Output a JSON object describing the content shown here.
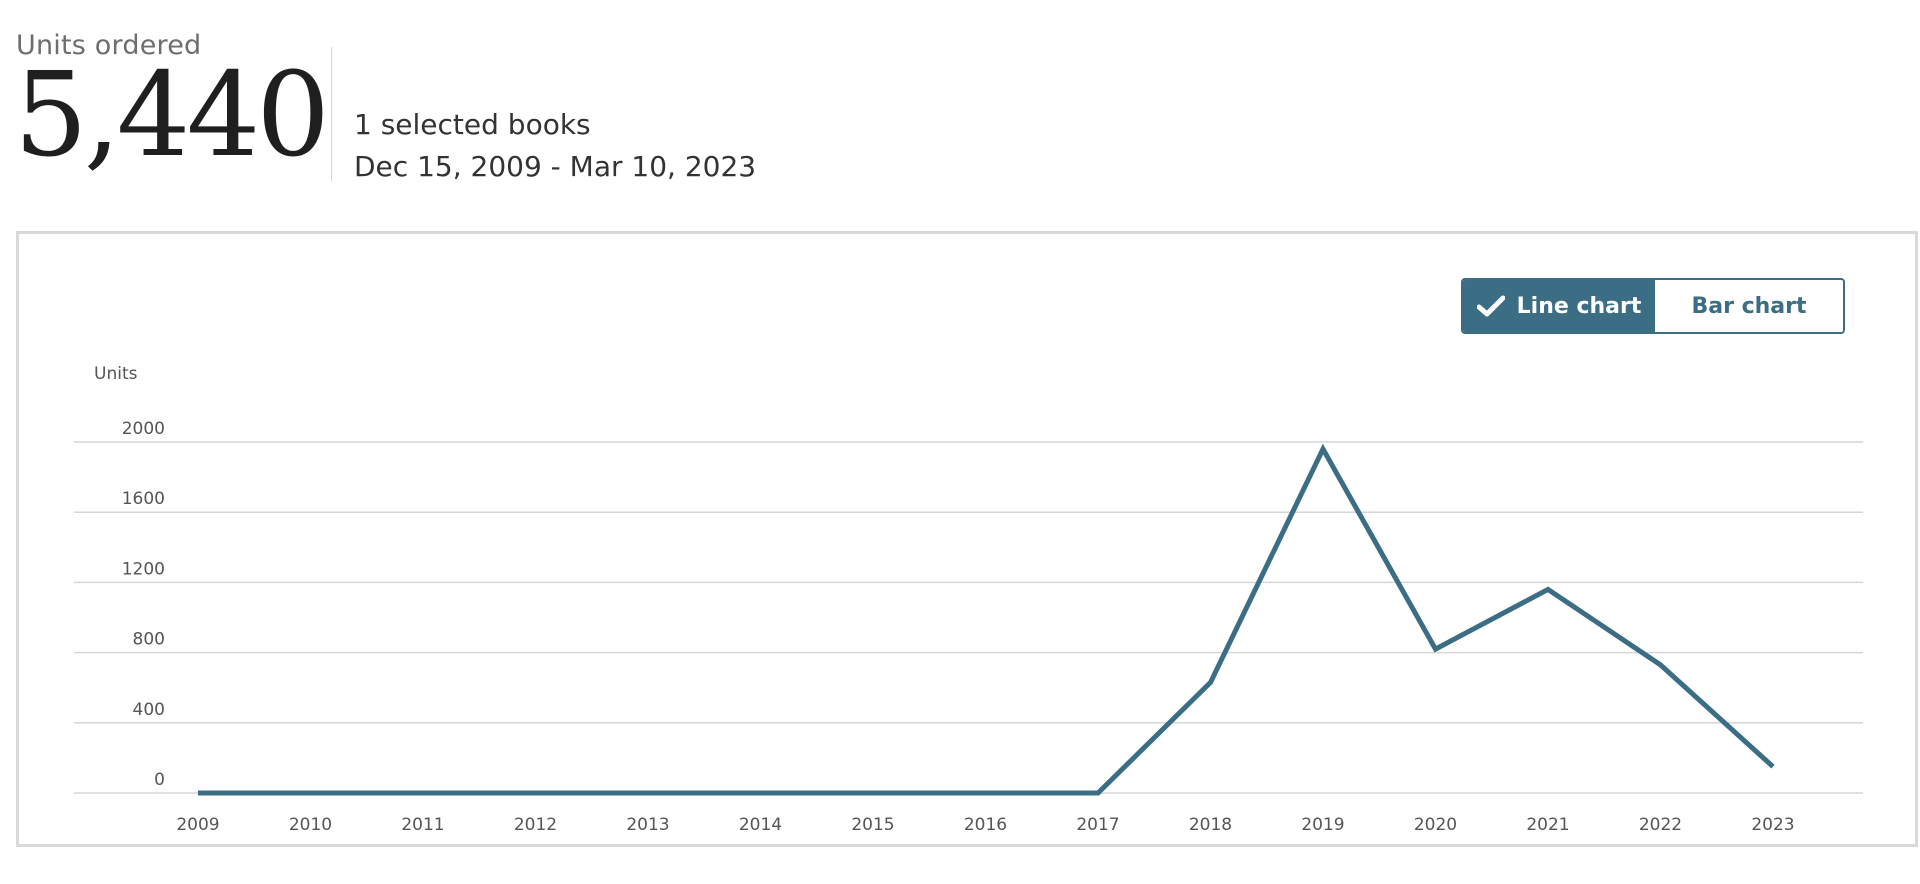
{
  "summary": {
    "metric_label": "Units ordered",
    "metric_value": "5,440",
    "selection_text": "1 selected books",
    "date_range": "Dec 15, 2009 - Mar 10, 2023"
  },
  "chart_toggle": {
    "line_label": "Line chart",
    "bar_label": "Bar chart",
    "selected": "line",
    "line_icon": "check-icon"
  },
  "colors": {
    "accent": "#3b6e84",
    "grid": "#d6d6d6"
  },
  "chart_data": {
    "type": "line",
    "ylabel": "Units",
    "x": [
      "2009",
      "2010",
      "2011",
      "2012",
      "2013",
      "2014",
      "2015",
      "2016",
      "2017",
      "2018",
      "2019",
      "2020",
      "2021",
      "2022",
      "2023"
    ],
    "series": [
      {
        "values": [
          0,
          0,
          0,
          0,
          0,
          0,
          0,
          0,
          0,
          630,
          1960,
          820,
          1160,
          730,
          150
        ]
      }
    ],
    "yticks": [
      0,
      400,
      800,
      1200,
      1600,
      2000
    ],
    "ylim": [
      0,
      2000
    ],
    "grid": true,
    "legend": "none"
  }
}
